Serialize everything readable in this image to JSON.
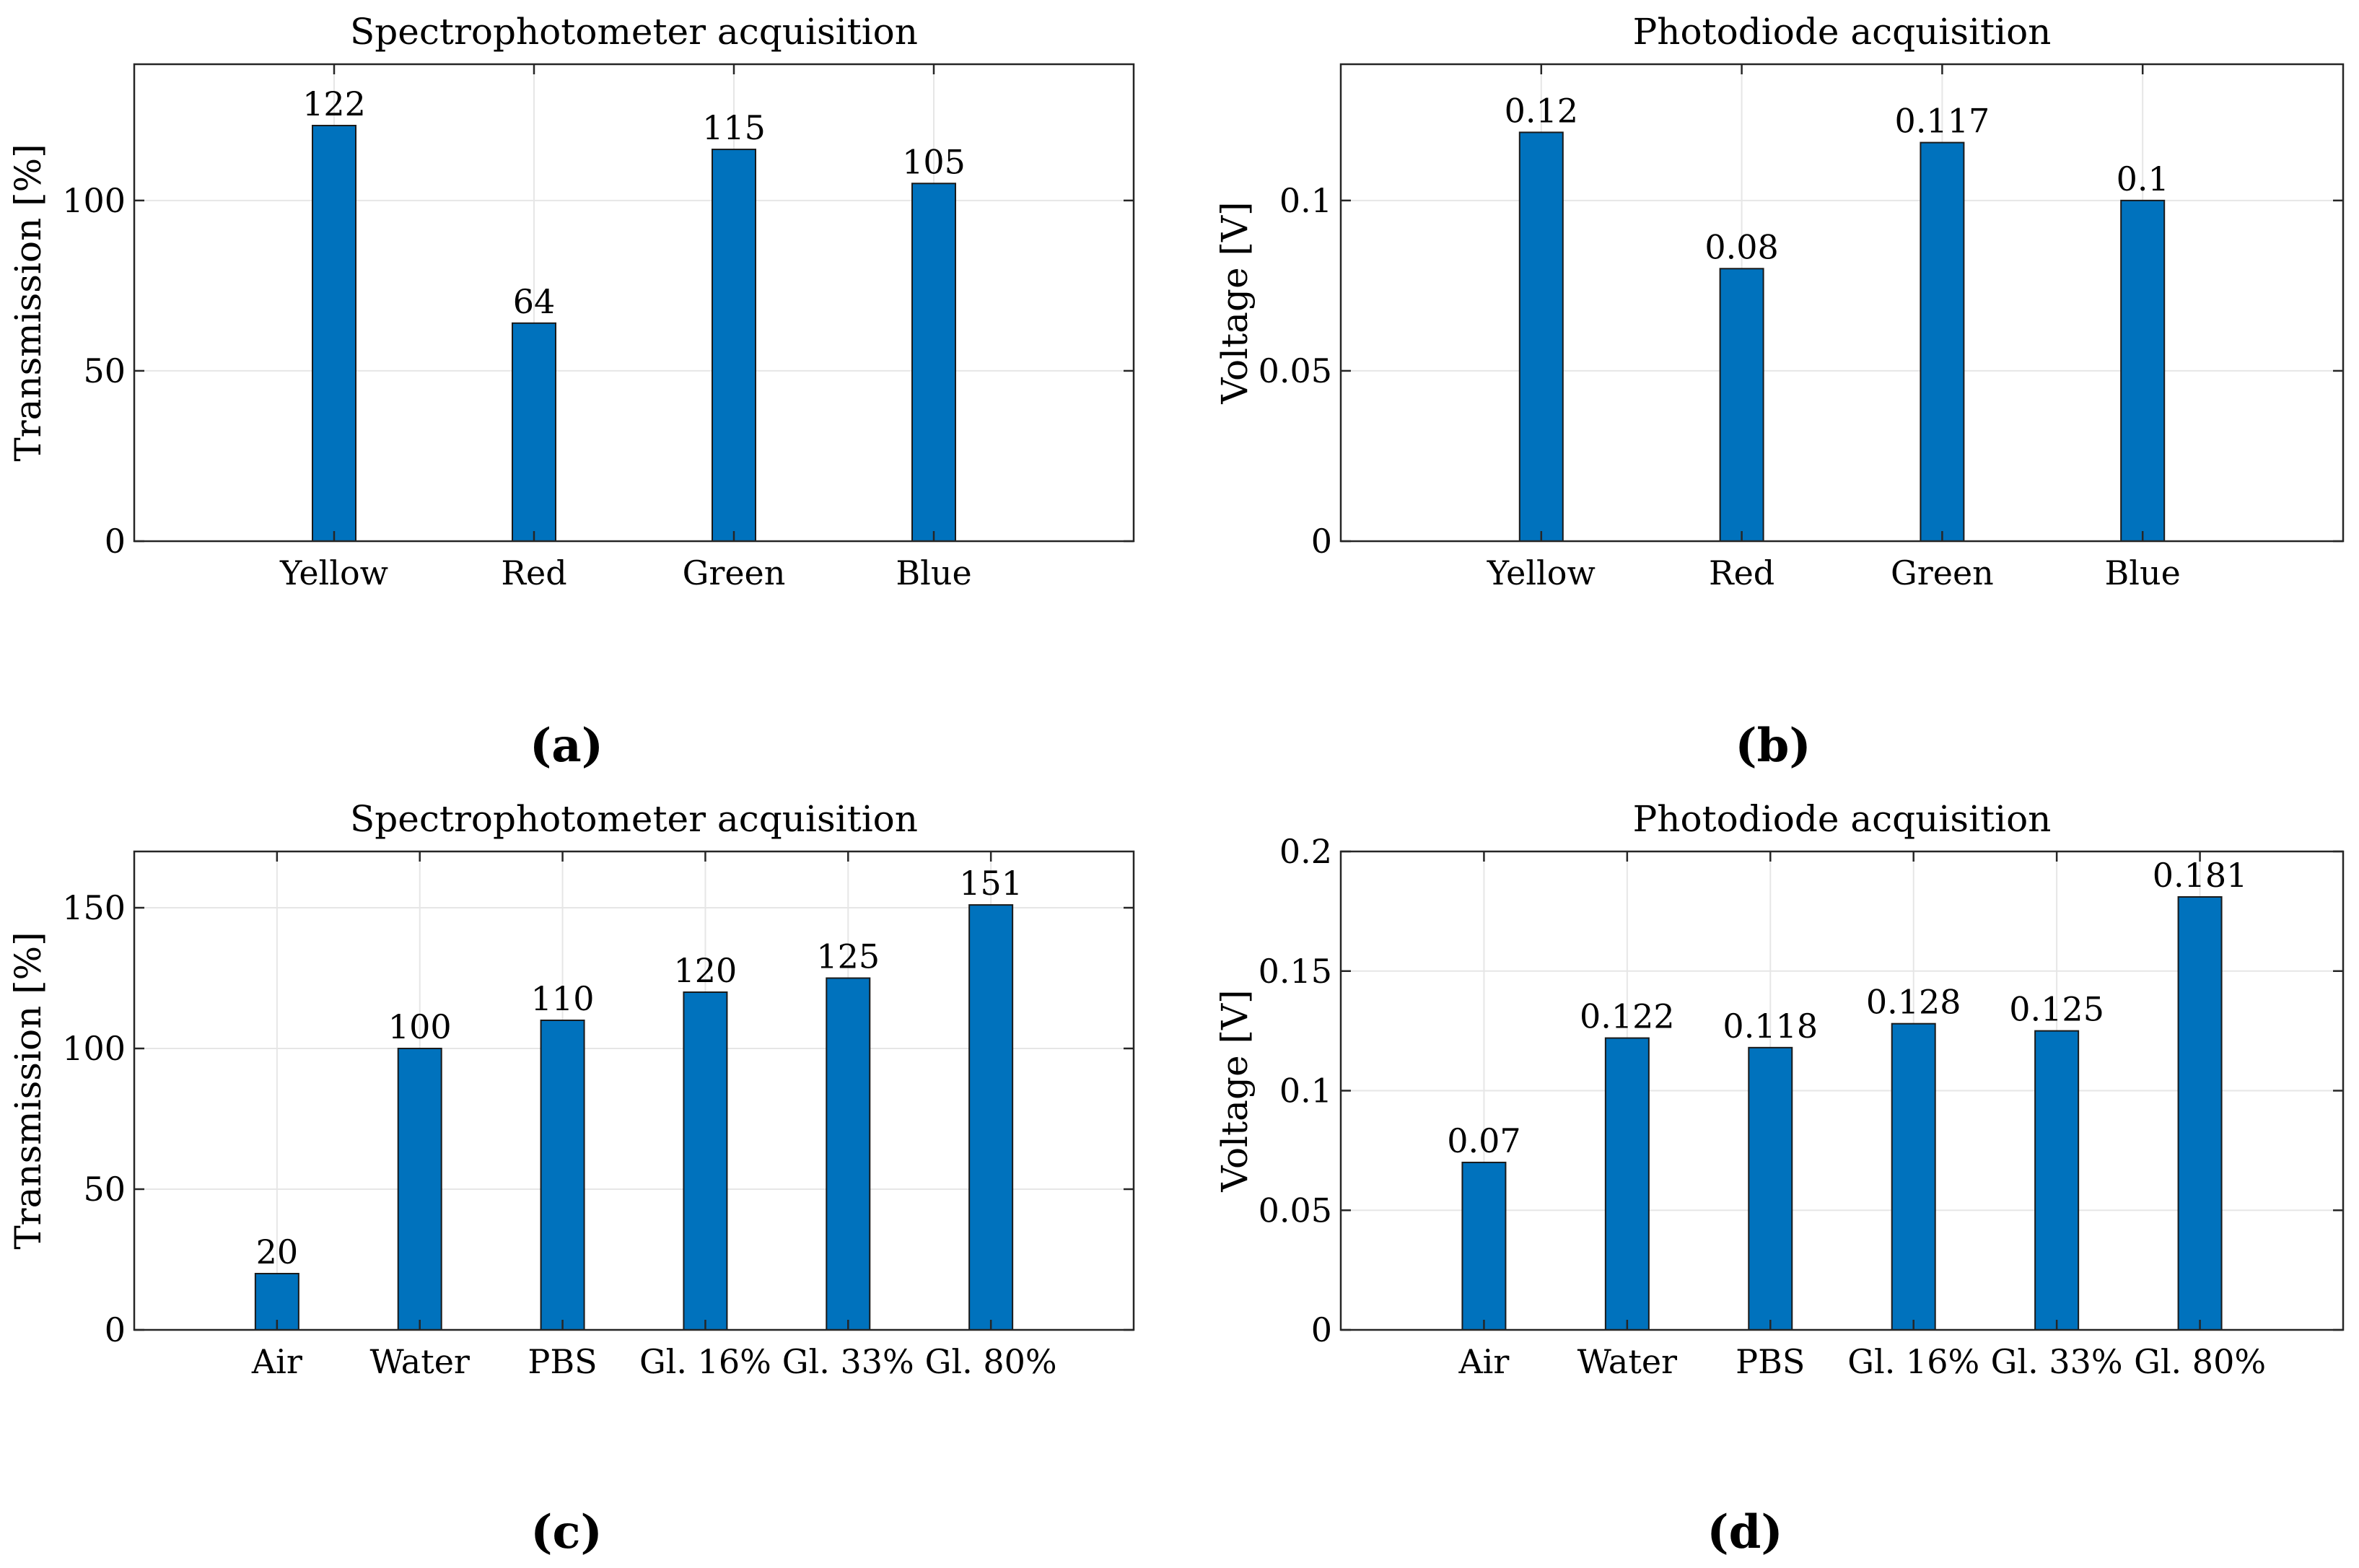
{
  "colors": {
    "bar": "#0072bd",
    "bar_edge": "#1a1a1a",
    "grid": "#e6e6e6",
    "axis": "#262626"
  },
  "panel_labels": [
    "(a)",
    "(b)",
    "(c)",
    "(d)"
  ],
  "chart_data": [
    {
      "type": "bar",
      "title": "Spectrophotometer acquisition",
      "categories": [
        "Yellow",
        "Red",
        "Green",
        "Blue"
      ],
      "values": [
        122,
        64,
        115,
        105
      ],
      "data_labels": [
        "122",
        "64",
        "115",
        "105"
      ],
      "ylabel": "Transmission [%]",
      "xlabel": "",
      "ylim": [
        0,
        140
      ],
      "yticks": [
        0,
        50,
        100
      ],
      "ytick_labels": [
        "0",
        "50",
        "100"
      ],
      "grid": true,
      "legend": "none"
    },
    {
      "type": "bar",
      "title": "Photodiode acquisition",
      "categories": [
        "Yellow",
        "Red",
        "Green",
        "Blue"
      ],
      "values": [
        0.12,
        0.08,
        0.117,
        0.1
      ],
      "data_labels": [
        "0.12",
        "0.08",
        "0.117",
        "0.1"
      ],
      "ylabel": "Voltage [V]",
      "xlabel": "",
      "ylim": [
        0,
        0.14
      ],
      "yticks": [
        0,
        0.05,
        0.1
      ],
      "ytick_labels": [
        "0",
        "0.05",
        "0.1"
      ],
      "grid": true,
      "legend": "none"
    },
    {
      "type": "bar",
      "title": "Spectrophotometer acquisition",
      "categories": [
        "Air",
        "Water",
        "PBS",
        "Gl. 16%",
        "Gl. 33%",
        "Gl. 80%"
      ],
      "values": [
        20,
        100,
        110,
        120,
        125,
        151
      ],
      "data_labels": [
        "20",
        "100",
        "110",
        "120",
        "125",
        "151"
      ],
      "ylabel": "Transmission [%]",
      "xlabel": "",
      "ylim": [
        0,
        170
      ],
      "yticks": [
        0,
        50,
        100,
        150
      ],
      "ytick_labels": [
        "0",
        "50",
        "100",
        "150"
      ],
      "grid": true,
      "legend": "none"
    },
    {
      "type": "bar",
      "title": "Photodiode acquisition",
      "categories": [
        "Air",
        "Water",
        "PBS",
        "Gl. 16%",
        "Gl. 33%",
        "Gl. 80%"
      ],
      "values": [
        0.07,
        0.122,
        0.118,
        0.128,
        0.125,
        0.181
      ],
      "data_labels": [
        "0.07",
        "0.122",
        "0.118",
        "0.128",
        "0.125",
        "0.181"
      ],
      "ylabel": "Voltage [V]",
      "xlabel": "",
      "ylim": [
        0,
        0.2
      ],
      "yticks": [
        0,
        0.05,
        0.1,
        0.15,
        0.2
      ],
      "ytick_labels": [
        "0",
        "0.05",
        "0.1",
        "0.15",
        "0.2"
      ],
      "grid": true,
      "legend": "none"
    }
  ]
}
